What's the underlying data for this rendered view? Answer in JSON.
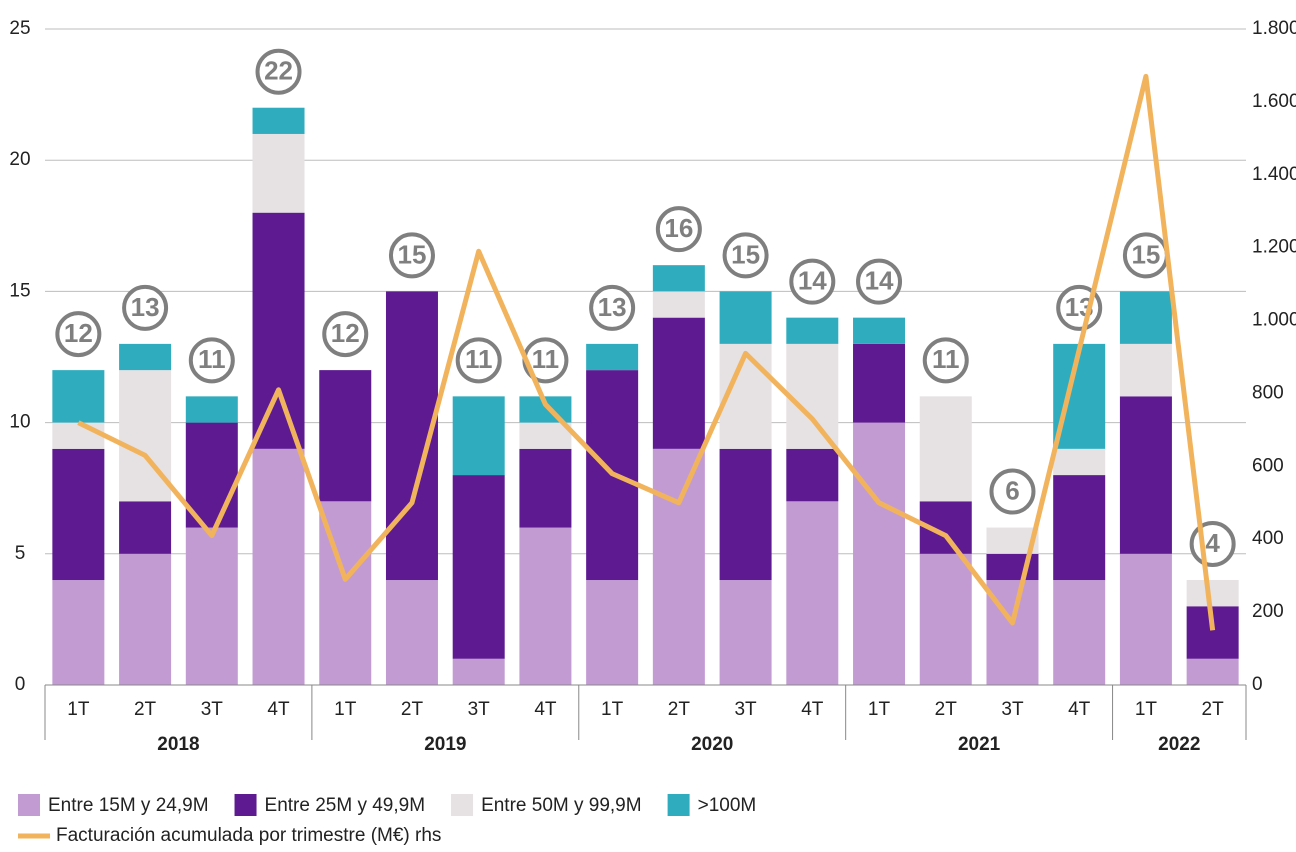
{
  "chart_data": {
    "type": "bar",
    "stacked": true,
    "categories": [
      "1T",
      "2T",
      "3T",
      "4T",
      "1T",
      "2T",
      "3T",
      "4T",
      "1T",
      "2T",
      "3T",
      "4T",
      "1T",
      "2T",
      "3T",
      "4T",
      "1T",
      "2T"
    ],
    "groups": [
      {
        "label": "2018",
        "size": 4
      },
      {
        "label": "2019",
        "size": 4
      },
      {
        "label": "2020",
        "size": 4
      },
      {
        "label": "2021",
        "size": 4
      },
      {
        "label": "2022",
        "size": 2
      }
    ],
    "series": [
      {
        "name": "Entre 15M y 24,9M",
        "color": "#c39bd3",
        "values": [
          4,
          5,
          6,
          9,
          7,
          4,
          1,
          6,
          4,
          9,
          4,
          7,
          10,
          5,
          4,
          4,
          5,
          1
        ]
      },
      {
        "name": "Entre 25M y 49,9M",
        "color": "#5e1a91",
        "values": [
          5,
          2,
          4,
          9,
          5,
          11,
          7,
          3,
          8,
          5,
          5,
          2,
          3,
          2,
          1,
          4,
          6,
          2
        ]
      },
      {
        "name": "Entre 50M y 99,9M",
        "color": "#e6e1e3",
        "values": [
          1,
          5,
          0,
          3,
          0,
          0,
          0,
          1,
          0,
          1,
          4,
          4,
          0,
          4,
          1,
          1,
          2,
          1
        ]
      },
      {
        "name": ">100M",
        "color": "#2fadbf",
        "values": [
          2,
          1,
          1,
          1,
          0,
          0,
          3,
          1,
          1,
          1,
          2,
          1,
          1,
          0,
          0,
          4,
          2,
          0
        ]
      },
      {
        "name": "Facturación acumulada por trimestre (M€) rhs",
        "color": "#f2b35d",
        "type": "line",
        "axis": "y2",
        "values": [
          720,
          630,
          410,
          810,
          290,
          500,
          1190,
          770,
          580,
          500,
          910,
          730,
          500,
          410,
          170,
          920,
          1670,
          150
        ]
      }
    ],
    "totals": [
      12,
      13,
      11,
      22,
      12,
      15,
      11,
      11,
      13,
      16,
      15,
      14,
      14,
      11,
      6,
      13,
      15,
      4
    ],
    "ylim": [
      0,
      25
    ],
    "yticks": [
      0,
      5,
      10,
      15,
      20,
      25
    ],
    "y2lim": [
      0,
      1800
    ],
    "y2ticks": [
      0,
      200,
      400,
      600,
      800,
      {
        "value": 1000,
        "label": "1.000"
      },
      {
        "value": 1200,
        "label": "1.200"
      },
      {
        "value": 1400,
        "label": "1.400"
      },
      {
        "value": 1600,
        "label": "1.600"
      },
      {
        "value": 1800,
        "label": "1.800"
      }
    ],
    "grid": true,
    "legend": "bottom-left"
  }
}
